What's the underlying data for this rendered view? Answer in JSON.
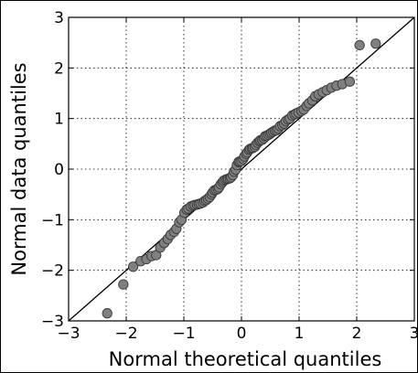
{
  "chart_data": {
    "type": "scatter",
    "title": "",
    "xlabel": "Normal theoretical quantiles",
    "ylabel": "Normal data quantiles",
    "xlim": [
      -3,
      3
    ],
    "ylim": [
      -3,
      3
    ],
    "xticks": [
      "−3",
      "−2",
      "−1",
      "0",
      "1",
      "2",
      "3"
    ],
    "yticks": [
      "−3",
      "−2",
      "−1",
      "0",
      "1",
      "2",
      "3"
    ],
    "grid": true,
    "reference_line": {
      "slope": 1,
      "intercept": 0
    },
    "marker_color": "#808080",
    "line_color": "#000000",
    "x": [
      -2.33,
      -2.05,
      -1.88,
      -1.75,
      -1.65,
      -1.56,
      -1.48,
      -1.41,
      -1.34,
      -1.28,
      -1.23,
      -1.17,
      -1.13,
      -1.08,
      -1.04,
      -0.99,
      -0.95,
      -0.92,
      -0.88,
      -0.84,
      -0.81,
      -0.77,
      -0.74,
      -0.71,
      -0.67,
      -0.64,
      -0.61,
      -0.58,
      -0.55,
      -0.52,
      -0.5,
      -0.47,
      -0.44,
      -0.41,
      -0.39,
      -0.36,
      -0.33,
      -0.31,
      -0.28,
      -0.25,
      -0.23,
      -0.2,
      -0.18,
      -0.15,
      -0.13,
      -0.1,
      -0.08,
      -0.05,
      -0.03,
      0.0,
      0.03,
      0.05,
      0.08,
      0.1,
      0.13,
      0.15,
      0.18,
      0.2,
      0.23,
      0.25,
      0.28,
      0.31,
      0.33,
      0.36,
      0.39,
      0.41,
      0.44,
      0.47,
      0.5,
      0.52,
      0.55,
      0.58,
      0.61,
      0.64,
      0.67,
      0.71,
      0.74,
      0.77,
      0.81,
      0.84,
      0.88,
      0.92,
      0.95,
      0.99,
      1.04,
      1.08,
      1.13,
      1.17,
      1.23,
      1.28,
      1.34,
      1.41,
      1.48,
      1.56,
      1.65,
      1.75,
      1.88,
      2.05,
      2.33
    ],
    "y": [
      -2.85,
      -2.28,
      -1.93,
      -1.82,
      -1.78,
      -1.72,
      -1.7,
      -1.55,
      -1.46,
      -1.38,
      -1.3,
      -1.24,
      -1.18,
      -1.05,
      -1.0,
      -0.86,
      -0.8,
      -0.78,
      -0.74,
      -0.72,
      -0.71,
      -0.7,
      -0.69,
      -0.68,
      -0.66,
      -0.63,
      -0.61,
      -0.58,
      -0.55,
      -0.5,
      -0.46,
      -0.42,
      -0.41,
      -0.39,
      -0.36,
      -0.3,
      -0.26,
      -0.23,
      -0.21,
      -0.2,
      -0.19,
      -0.18,
      -0.16,
      -0.12,
      -0.05,
      -0.01,
      0.08,
      0.14,
      0.15,
      0.16,
      0.2,
      0.25,
      0.3,
      0.33,
      0.38,
      0.4,
      0.41,
      0.42,
      0.44,
      0.48,
      0.52,
      0.55,
      0.57,
      0.58,
      0.61,
      0.65,
      0.66,
      0.68,
      0.7,
      0.72,
      0.74,
      0.76,
      0.77,
      0.8,
      0.85,
      0.87,
      0.9,
      0.95,
      0.98,
      1.0,
      1.06,
      1.08,
      1.1,
      1.12,
      1.15,
      1.18,
      1.25,
      1.3,
      1.36,
      1.44,
      1.48,
      1.52,
      1.56,
      1.61,
      1.65,
      1.68,
      1.73,
      2.45,
      2.48
    ]
  }
}
